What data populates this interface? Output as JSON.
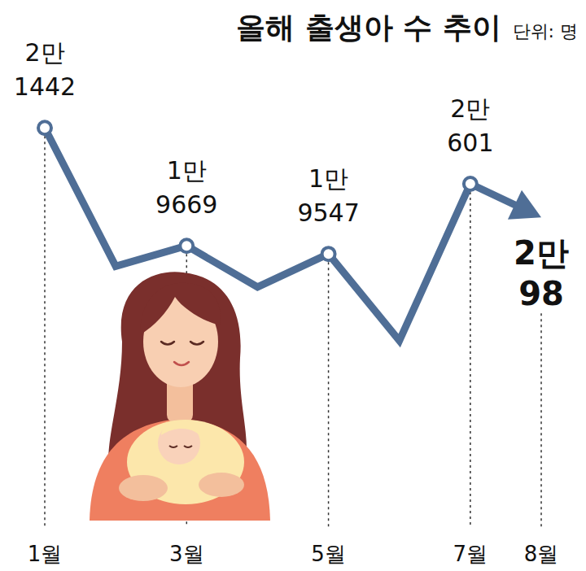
{
  "chart_data": {
    "type": "line",
    "title": "올해 출생아 수 추이",
    "subtitle": "단위: 명",
    "categories": [
      "1월",
      null,
      "3월",
      null,
      "5월",
      null,
      "7월",
      "8월"
    ],
    "values": [
      21442,
      19362,
      19669,
      19049,
      19547,
      18242,
      20601,
      20098
    ],
    "value_labels": [
      "2만 1442",
      null,
      "1만 9669",
      null,
      "1만 9547",
      null,
      "2만 601",
      "2만 98"
    ],
    "ylim": [
      17800,
      21800
    ],
    "color": "#4f6e96",
    "marker": "circle",
    "data_labels": true,
    "tick_labels": "x",
    "grid": false
  }
}
